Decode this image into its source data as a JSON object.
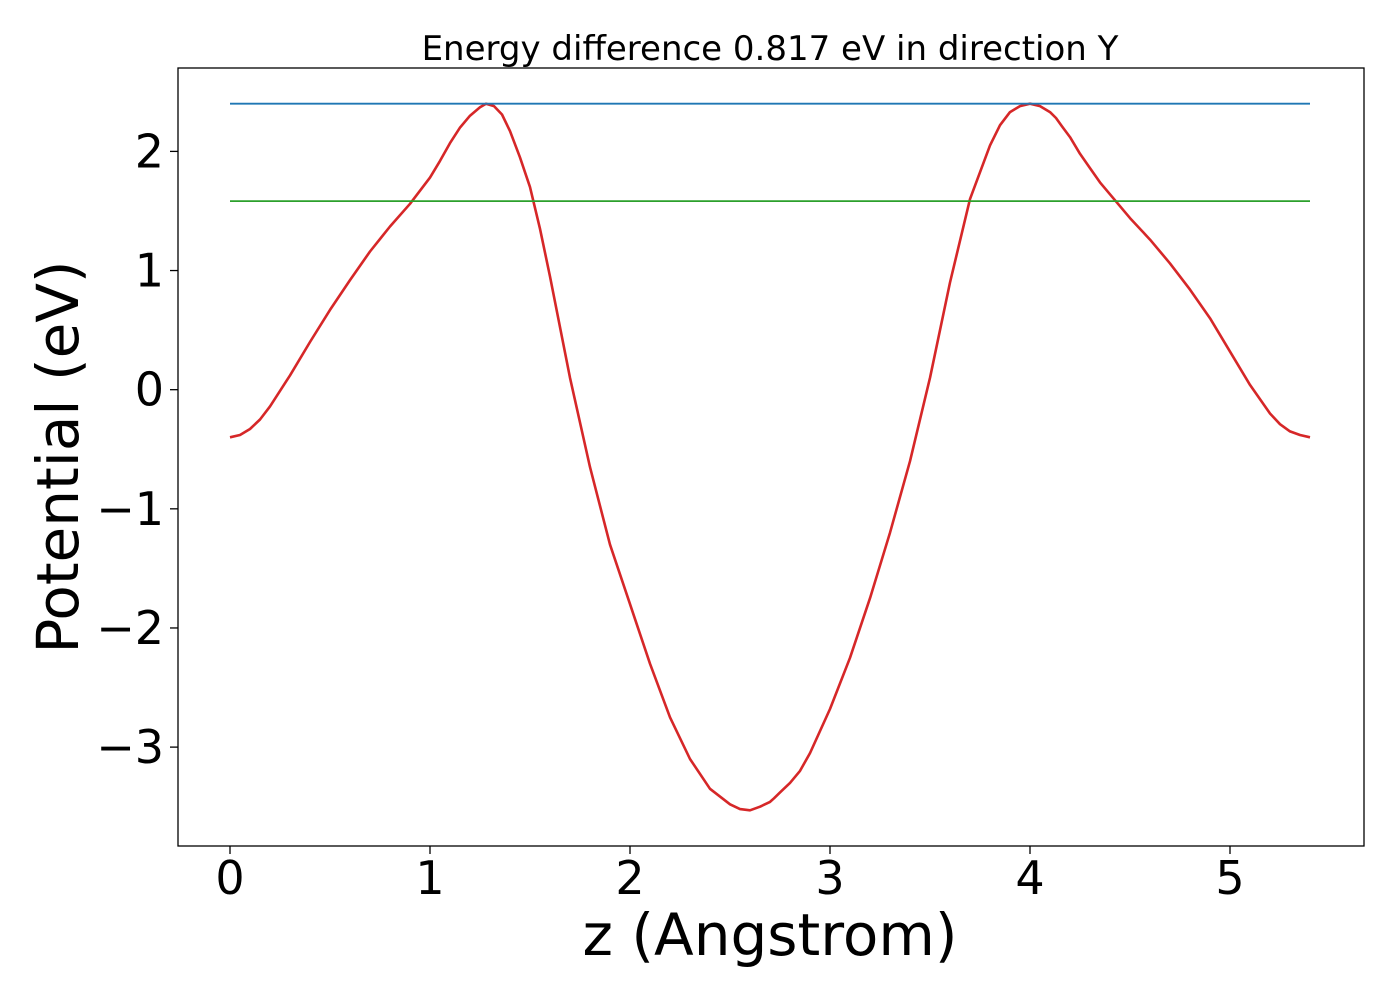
{
  "chart_data": {
    "type": "line",
    "title": "Energy difference 0.817 eV in direction Y",
    "xlabel": "z (Angstrom)",
    "ylabel": "Potential (eV)",
    "xlim": [
      -0.26,
      5.67
    ],
    "ylim": [
      -3.83,
      2.7
    ],
    "xticks": [
      0,
      1,
      2,
      3,
      4,
      5
    ],
    "xtick_labels": [
      "0",
      "1",
      "2",
      "3",
      "4",
      "5"
    ],
    "yticks": [
      -3,
      -2,
      -1,
      0,
      1,
      2
    ],
    "ytick_labels": [
      "−3",
      "−2",
      "−1",
      "0",
      "1",
      "2"
    ],
    "grid": false,
    "legend": "none",
    "series": [
      {
        "color": "#d62728",
        "kind": "curve",
        "x": [
          0.0,
          0.05,
          0.1,
          0.15,
          0.2,
          0.3,
          0.4,
          0.5,
          0.6,
          0.7,
          0.8,
          0.9,
          1.0,
          1.05,
          1.1,
          1.15,
          1.2,
          1.25,
          1.28,
          1.32,
          1.36,
          1.4,
          1.45,
          1.5,
          1.55,
          1.6,
          1.7,
          1.8,
          1.9,
          2.0,
          2.1,
          2.2,
          2.3,
          2.4,
          2.5,
          2.55,
          2.6,
          2.65,
          2.7,
          2.72,
          2.75,
          2.8,
          2.85,
          2.9,
          3.0,
          3.1,
          3.2,
          3.3,
          3.4,
          3.5,
          3.6,
          3.7,
          3.8,
          3.85,
          3.9,
          3.95,
          4.0,
          4.05,
          4.1,
          4.13,
          4.16,
          4.2,
          4.25,
          4.3,
          4.35,
          4.4,
          4.5,
          4.6,
          4.7,
          4.8,
          4.9,
          5.0,
          5.1,
          5.2,
          5.25,
          5.3,
          5.35,
          5.4
        ],
        "y": [
          -0.4,
          -0.38,
          -0.33,
          -0.25,
          -0.14,
          0.12,
          0.4,
          0.67,
          0.92,
          1.16,
          1.37,
          1.56,
          1.78,
          1.92,
          2.07,
          2.2,
          2.3,
          2.37,
          2.4,
          2.38,
          2.31,
          2.17,
          1.95,
          1.7,
          1.35,
          0.95,
          0.1,
          -0.65,
          -1.3,
          -1.8,
          -2.3,
          -2.75,
          -3.1,
          -3.35,
          -3.48,
          -3.52,
          -3.53,
          -3.5,
          -3.46,
          -3.43,
          -3.38,
          -3.3,
          -3.2,
          -3.05,
          -2.68,
          -2.25,
          -1.75,
          -1.2,
          -0.6,
          0.1,
          0.9,
          1.6,
          2.05,
          2.22,
          2.33,
          2.38,
          2.4,
          2.38,
          2.33,
          2.28,
          2.21,
          2.12,
          1.98,
          1.86,
          1.74,
          1.64,
          1.44,
          1.26,
          1.06,
          0.84,
          0.6,
          0.32,
          0.04,
          -0.2,
          -0.29,
          -0.35,
          -0.38,
          -0.4
        ]
      },
      {
        "color": "#1f77b4",
        "kind": "hline",
        "x": [
          0.0,
          5.4
        ],
        "y": [
          2.4,
          2.4
        ]
      },
      {
        "color": "#2ca02c",
        "kind": "hline",
        "x": [
          0.0,
          5.4
        ],
        "y": [
          1.583,
          1.583
        ]
      }
    ]
  }
}
